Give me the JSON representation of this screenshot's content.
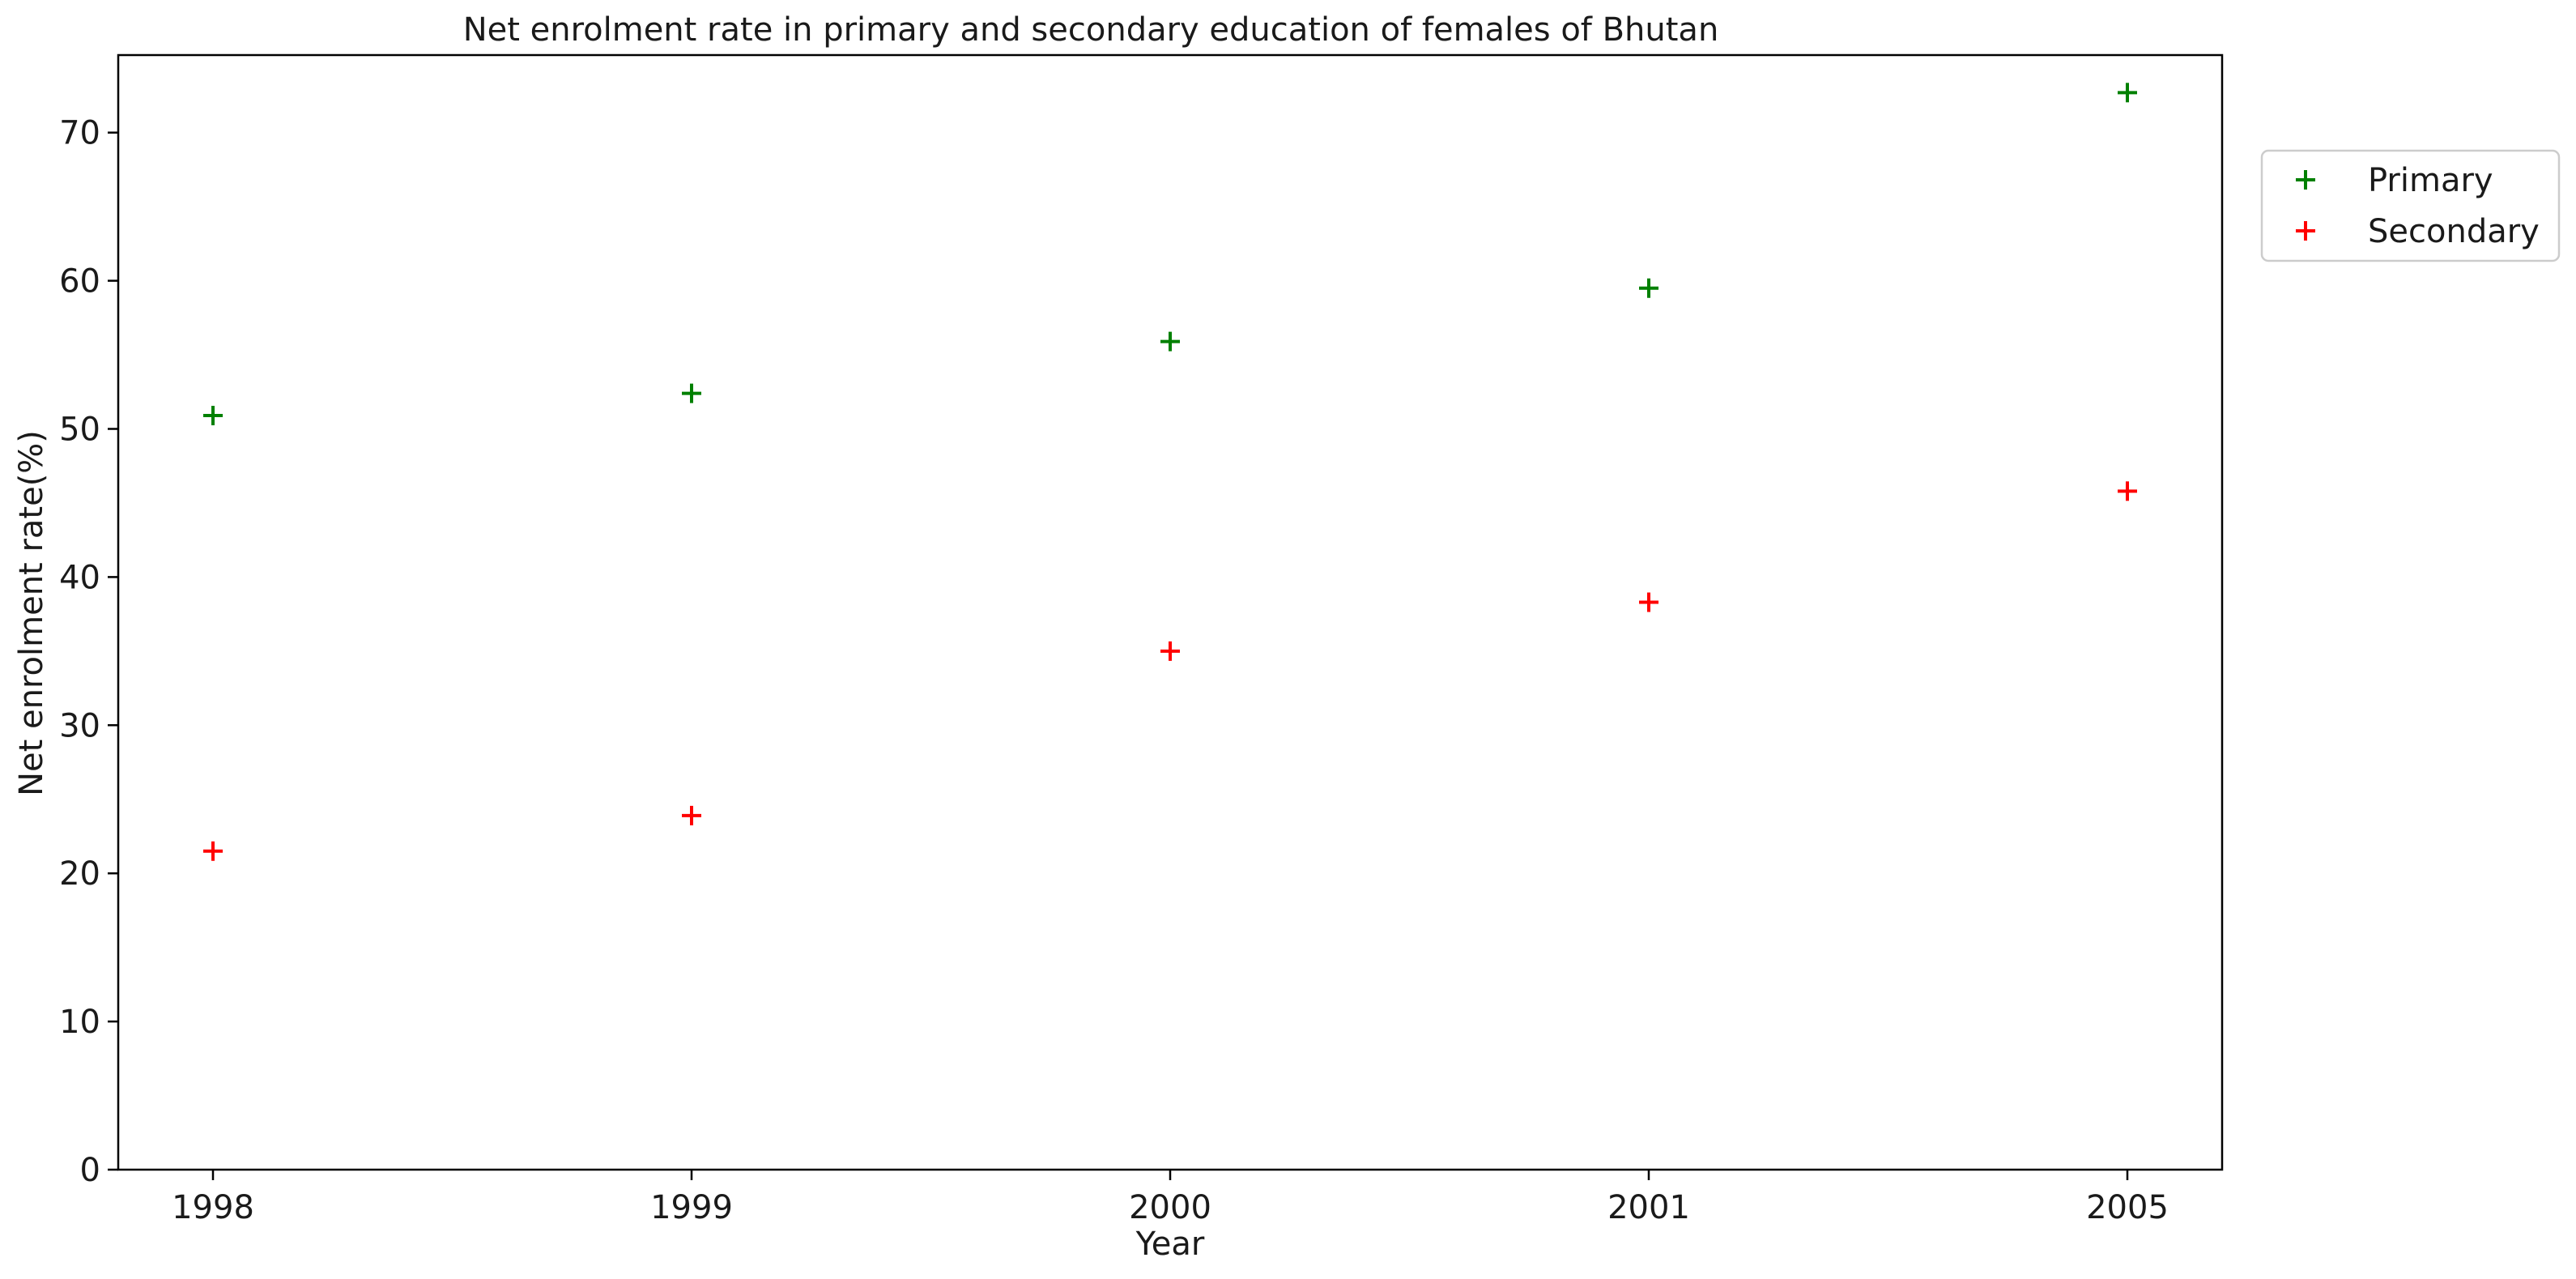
{
  "chart_data": {
    "type": "scatter",
    "title": "Net enrolment rate in primary and secondary education of females of Bhutan",
    "xlabel": "Year",
    "ylabel": "Net enrolment rate(%)",
    "categories": [
      "1998",
      "1999",
      "2000",
      "2001",
      "2005"
    ],
    "ylim": [
      0,
      75
    ],
    "yticks": [
      0,
      10,
      20,
      30,
      40,
      50,
      60,
      70
    ],
    "grid": false,
    "legend_position": "outside-top-right",
    "series": [
      {
        "name": "Primary",
        "color": "#008000",
        "marker": "plus",
        "values": [
          50.9,
          52.4,
          55.9,
          59.5,
          72.7
        ]
      },
      {
        "name": "Secondary",
        "color": "#ff0000",
        "marker": "plus",
        "values": [
          21.5,
          23.9,
          35.0,
          38.3,
          45.8
        ]
      }
    ]
  }
}
